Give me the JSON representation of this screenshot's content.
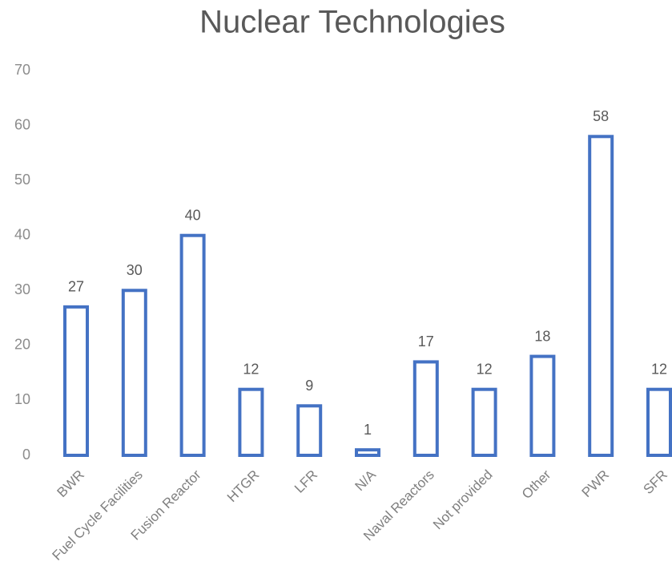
{
  "chart_data": {
    "type": "bar",
    "title": "Nuclear Technologies",
    "categories": [
      "BWR",
      "Fuel Cycle Facilities",
      "Fusion Reactor",
      "HTGR",
      "LFR",
      "N/A",
      "Naval Reactors",
      "Not provided",
      "Other",
      "PWR",
      "SFR"
    ],
    "values": [
      27,
      30,
      40,
      12,
      9,
      1,
      17,
      12,
      18,
      58,
      12
    ],
    "color": "#4472c4",
    "ylim": [
      0,
      70
    ],
    "yticks": [
      0,
      10,
      20,
      30,
      40,
      50,
      60,
      70
    ],
    "grid": false
  }
}
